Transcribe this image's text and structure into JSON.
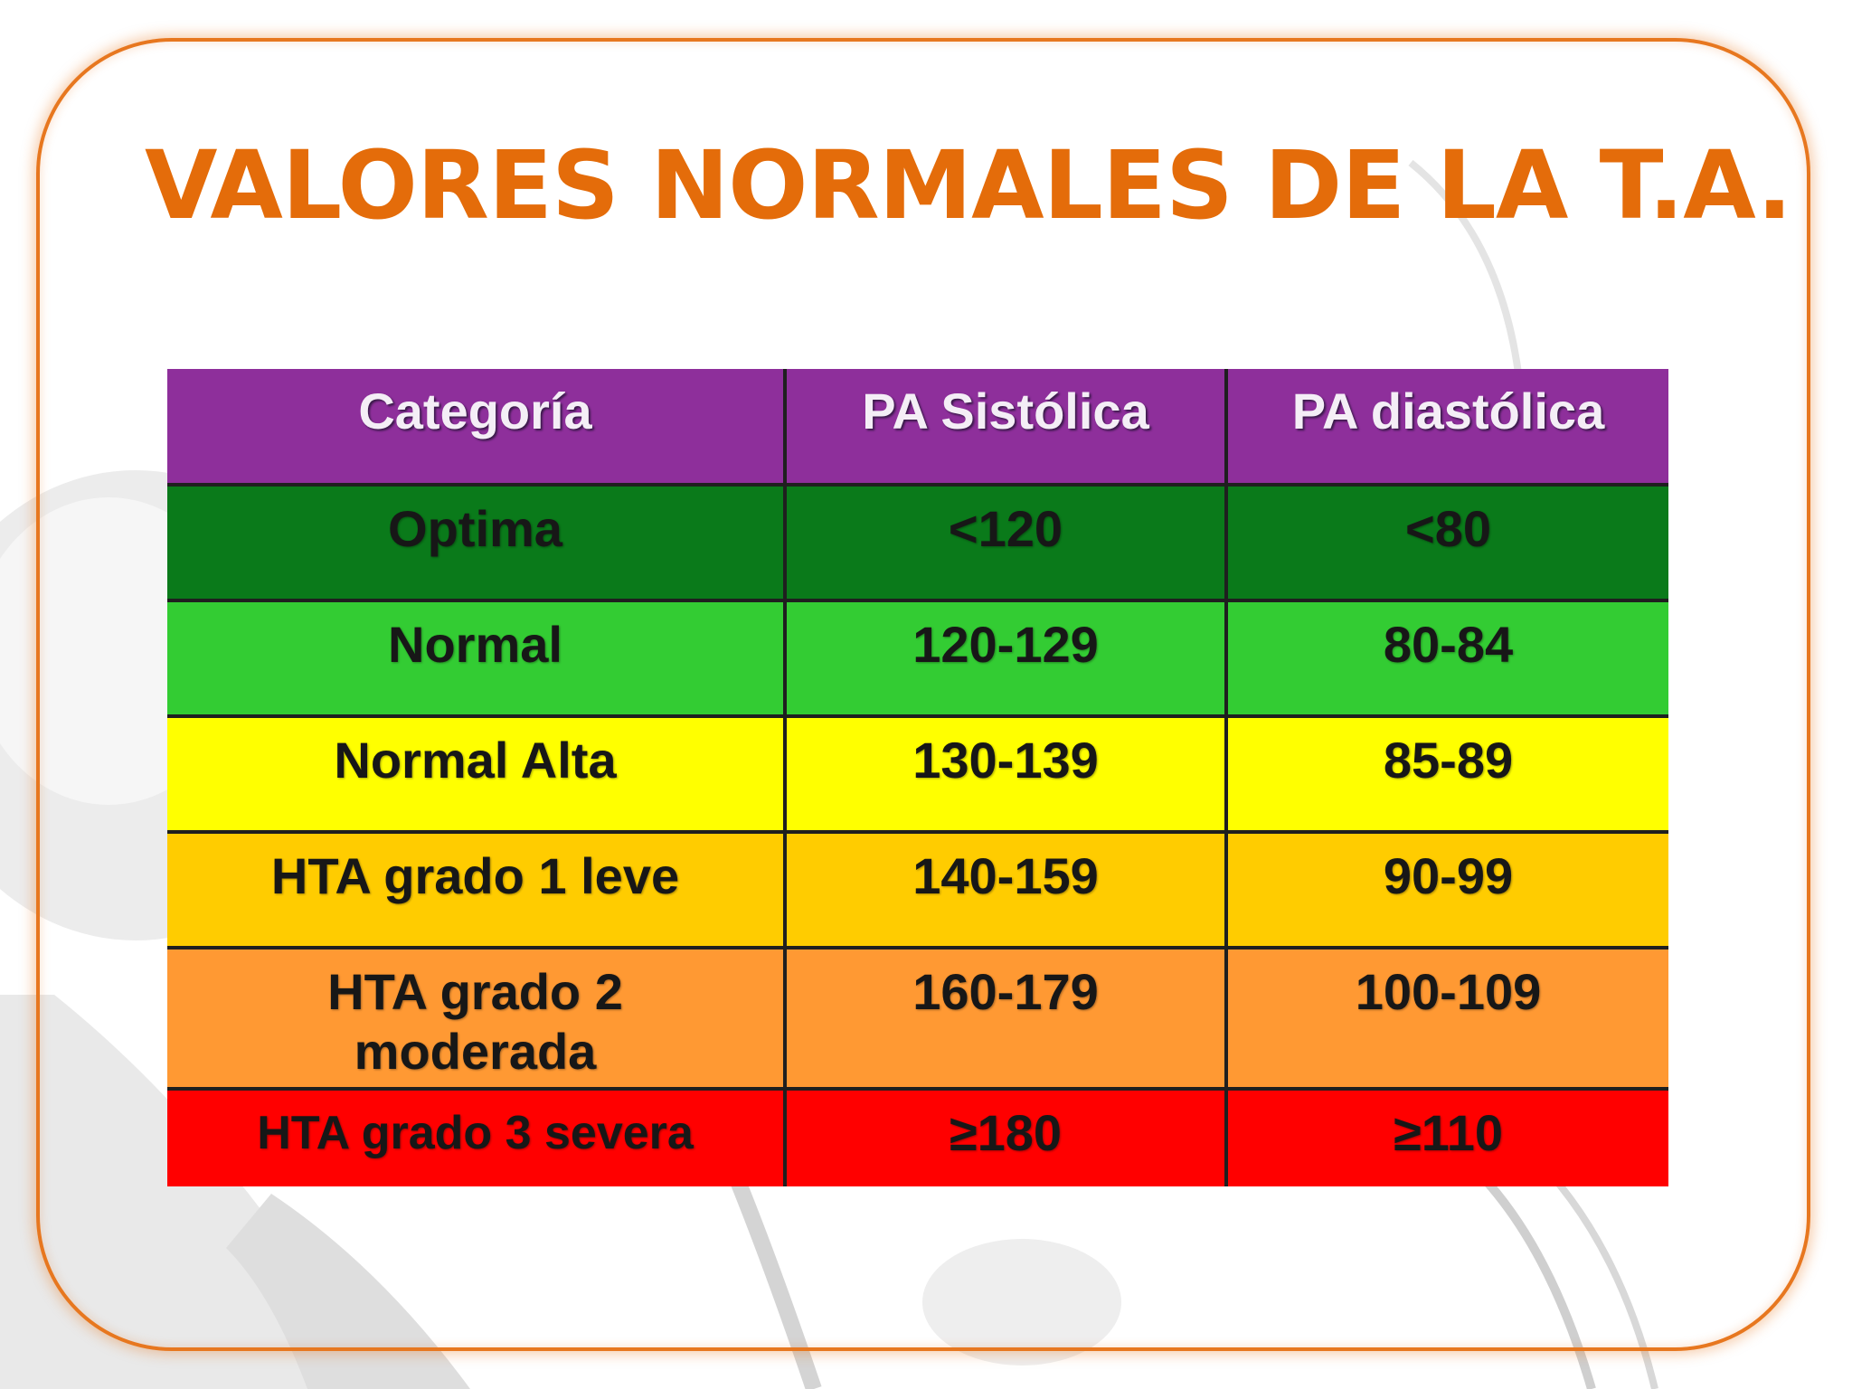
{
  "slide": {
    "title": "VALORES NORMALES DE LA T.A."
  },
  "colors": {
    "title": "#e46c0a",
    "frame": "#e7771f",
    "header": "#8e2f9b"
  },
  "table": {
    "headers": [
      "Categoría",
      "PA Sistólica",
      "PA diastólica"
    ],
    "rows": [
      {
        "category": "Optima",
        "systolic": "<120",
        "diastolic": "<80",
        "color": "#0a7a1a"
      },
      {
        "category": "Normal",
        "systolic": "120-129",
        "diastolic": "80-84",
        "color": "#33cc33"
      },
      {
        "category": "Normal Alta",
        "systolic": "130-139",
        "diastolic": "85-89",
        "color": "#ffff00"
      },
      {
        "category": "HTA grado 1 leve",
        "systolic": "140-159",
        "diastolic": "90-99",
        "color": "#ffcc00"
      },
      {
        "category": "HTA grado 2 moderada",
        "systolic": "160-179",
        "diastolic": "100-109",
        "color": "#ff9933"
      },
      {
        "category": "HTA grado 3 severa",
        "systolic": "≥180",
        "diastolic": "≥110",
        "color": "#ff0000"
      }
    ]
  }
}
